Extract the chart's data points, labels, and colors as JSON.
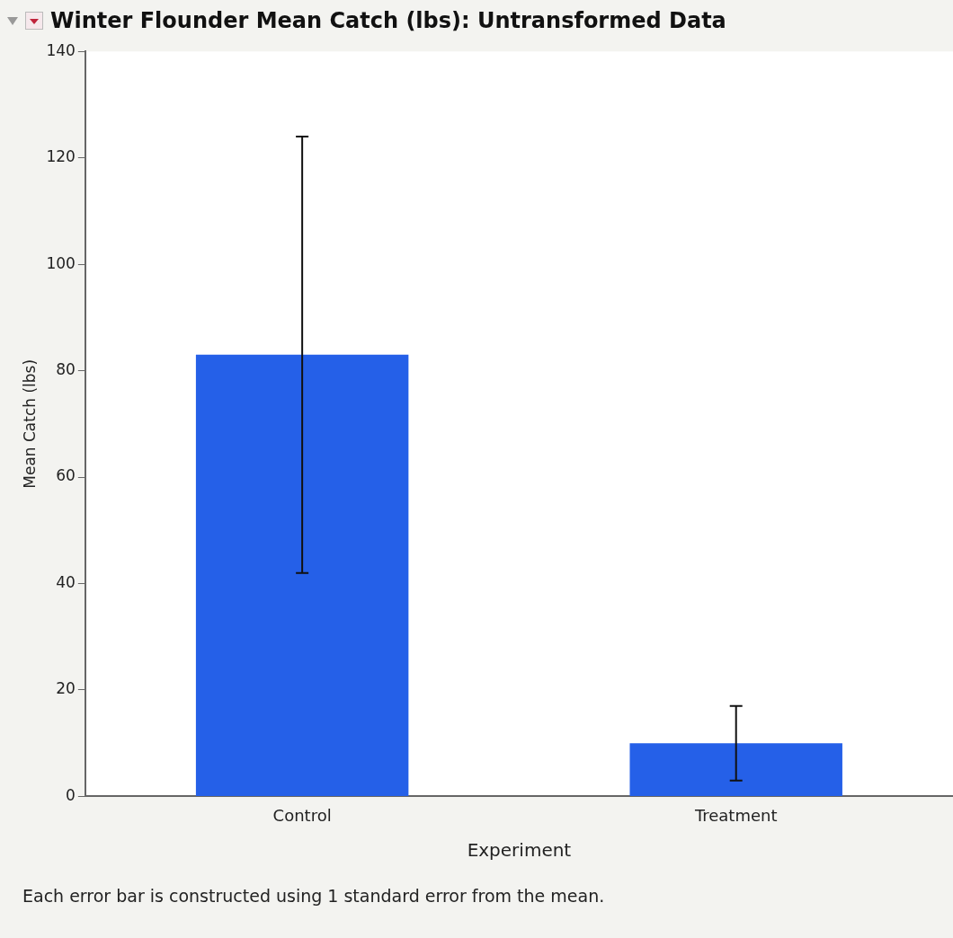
{
  "chart_data": {
    "type": "bar",
    "title": "Winter Flounder Mean Catch (lbs): Untransformed Data",
    "xlabel": "Experiment",
    "ylabel": "Mean Catch (lbs)",
    "categories": [
      "Control",
      "Treatment"
    ],
    "values": [
      83,
      10
    ],
    "color": "#2560e8",
    "errors": [
      [
        42,
        124
      ],
      [
        3,
        17
      ]
    ],
    "ylim": [
      0,
      140
    ],
    "yticks": [
      0,
      20,
      40,
      60,
      80,
      100,
      120,
      140
    ],
    "annotations": [
      "Each error bar is constructed using 1 standard error from the mean."
    ]
  }
}
